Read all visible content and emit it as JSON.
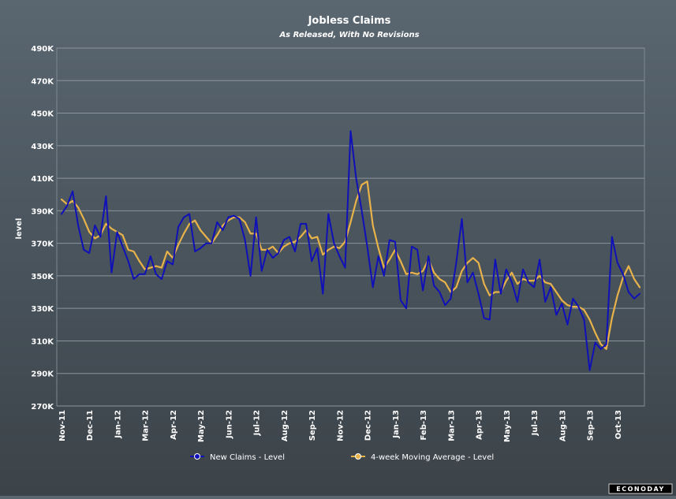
{
  "chart_data": {
    "type": "line",
    "title": "Jobless Claims",
    "subtitle": "As Released, With No Revisions",
    "ylabel": "level",
    "ylim": [
      270,
      490
    ],
    "y_ticks": [
      "270K",
      "290K",
      "310K",
      "330K",
      "350K",
      "370K",
      "390K",
      "410K",
      "430K",
      "450K",
      "470K",
      "490K"
    ],
    "y_tick_values": [
      270,
      290,
      310,
      330,
      350,
      370,
      390,
      410,
      430,
      450,
      470,
      490
    ],
    "x_ticks": [
      "Nov-11",
      "Dec-11",
      "Jan-12",
      "Mar-12",
      "Apr-12",
      "May-12",
      "Jun-12",
      "Jul-12",
      "Aug-12",
      "Sep-12",
      "Nov-12",
      "Dec-12",
      "Jan-13",
      "Feb-13",
      "Mar-13",
      "Apr-13",
      "May-13",
      "Jul-13",
      "Aug-13",
      "Sep-13",
      "Oct-13"
    ],
    "x_tick_positions": [
      0,
      5,
      10,
      15,
      20,
      25,
      30,
      35,
      40,
      45,
      50,
      55,
      60,
      65,
      70,
      75,
      80,
      85,
      90,
      95,
      100
    ],
    "grid": true,
    "legend_position": "bottom",
    "series": [
      {
        "name": "New Claims - Level",
        "color": "#1010b8",
        "values": [
          388,
          393,
          402,
          381,
          366,
          364,
          381,
          374,
          399,
          352,
          377,
          368,
          359,
          348,
          351,
          351,
          362,
          351,
          348,
          359,
          357,
          380,
          386,
          388,
          365,
          367,
          370,
          370,
          383,
          378,
          386,
          387,
          385,
          372,
          350,
          386,
          353,
          366,
          361,
          364,
          372,
          374,
          365,
          382,
          382,
          359,
          367,
          339,
          388,
          370,
          362,
          355,
          439,
          410,
          390,
          368,
          343,
          362,
          350,
          372,
          371,
          335,
          330,
          368,
          366,
          341,
          362,
          344,
          340,
          332,
          336,
          358,
          385,
          346,
          352,
          339,
          324,
          323,
          360,
          339,
          354,
          346,
          334,
          354,
          346,
          343,
          360,
          334,
          343,
          326,
          333,
          320,
          336,
          331,
          323,
          292,
          309,
          305,
          308,
          374,
          358,
          351,
          340,
          336,
          339
        ],
        "marker_name": "blue-circle-marker-icon"
      },
      {
        "name": "4-week Moving Average - Level",
        "color": "#e8b24a",
        "values": [
          397,
          394,
          396,
          392,
          385,
          377,
          373,
          375,
          382,
          379,
          377,
          375,
          366,
          365,
          359,
          354,
          355,
          356,
          355,
          365,
          361,
          369,
          376,
          382,
          384,
          378,
          374,
          370,
          375,
          381,
          384,
          386,
          386,
          383,
          376,
          376,
          366,
          366,
          368,
          364,
          368,
          370,
          371,
          374,
          378,
          373,
          374,
          363,
          366,
          368,
          367,
          371,
          383,
          396,
          406,
          408,
          381,
          367,
          355,
          360,
          366,
          359,
          351,
          352,
          351,
          353,
          360,
          352,
          348,
          346,
          340,
          343,
          353,
          358,
          361,
          358,
          345,
          338,
          340,
          340,
          347,
          352,
          345,
          348,
          347,
          347,
          350,
          346,
          345,
          340,
          335,
          332,
          331,
          331,
          329,
          323,
          315,
          308,
          305,
          324,
          338,
          349,
          356,
          348,
          343
        ],
        "marker_name": "gold-circle-marker-icon"
      }
    ]
  },
  "watermark": "ECONODAY"
}
